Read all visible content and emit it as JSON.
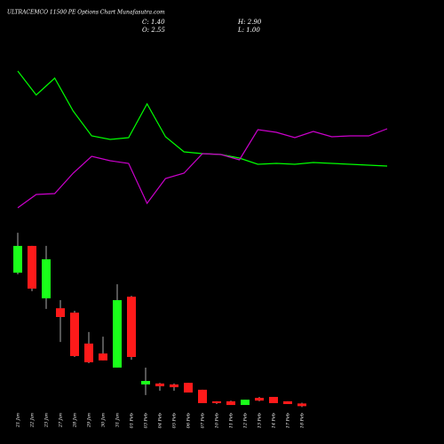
{
  "chart_data": [
    {
      "type": "candlestick",
      "title": "ULTRACEMCO 11500 PE Options Chart Munafasutra.com",
      "summary": [
        {
          "value": 1.4,
          "label": "C: 1.40"
        },
        {
          "value": 2.55,
          "label": "O: 2.55"
        },
        {
          "value": 2.9,
          "label": "H: 2.90"
        },
        {
          "value": 1.0,
          "label": "L: 1.00"
        }
      ],
      "categories": [
        "21 Jan",
        "22 Jan",
        "23 Jan",
        "27 Jan",
        "28 Jan",
        "29 Jan",
        "30 Jan",
        "31 Jan",
        "01 Feb",
        "03 Feb",
        "04 Feb",
        "05 Feb",
        "06 Feb",
        "07 Feb",
        "10 Feb",
        "11 Feb",
        "12 Feb",
        "13 Feb",
        "14 Feb",
        "17 Feb",
        "18 Feb"
      ],
      "open": [
        59.2,
        70.8,
        48.1,
        43.8,
        41.9,
        28.5,
        24.2,
        18.1,
        48.8,
        10.8,
        11.2,
        10.8,
        11.5,
        8.5,
        3.5,
        3.5,
        1.9,
        5.0,
        5.4,
        3.5,
        2.55
      ],
      "high": [
        76.5,
        70.8,
        70.8,
        47.3,
        42.7,
        33.5,
        31.5,
        54.2,
        49.2,
        18.1,
        11.5,
        11.2,
        11.5,
        8.5,
        3.5,
        3.8,
        4.2,
        5.4,
        5.4,
        3.5,
        2.9
      ],
      "low": [
        58.5,
        51.2,
        43.5,
        29.2,
        22.7,
        20.0,
        21.2,
        18.1,
        21.5,
        6.2,
        8.1,
        8.1,
        7.3,
        2.7,
        2.3,
        1.9,
        1.9,
        3.5,
        2.7,
        2.3,
        1.0
      ],
      "close": [
        70.8,
        52.3,
        65.0,
        40.0,
        23.1,
        20.4,
        21.2,
        47.3,
        22.7,
        12.3,
        10.0,
        9.6,
        7.3,
        2.7,
        2.7,
        1.9,
        4.2,
        3.8,
        2.7,
        2.3,
        1.4
      ],
      "up_color": "#1aff1a",
      "down_color": "#ff1a1a",
      "ylim": [
        0,
        80
      ]
    },
    {
      "type": "line",
      "series": [
        {
          "color": "#00ff00",
          "values": [
            170,
            143,
            162,
            125,
            97,
            93,
            95,
            133,
            96,
            79,
            77,
            76,
            72,
            65,
            66,
            65,
            67,
            66,
            65,
            64,
            63
          ]
        },
        {
          "color": "#cc00cc",
          "values": [
            16,
            31,
            32,
            55,
            74,
            69,
            66,
            21,
            49,
            55,
            77,
            76,
            70,
            104,
            101,
            95,
            102,
            96,
            97,
            97,
            105
          ]
        }
      ],
      "ylim": [
        0,
        200
      ]
    }
  ]
}
